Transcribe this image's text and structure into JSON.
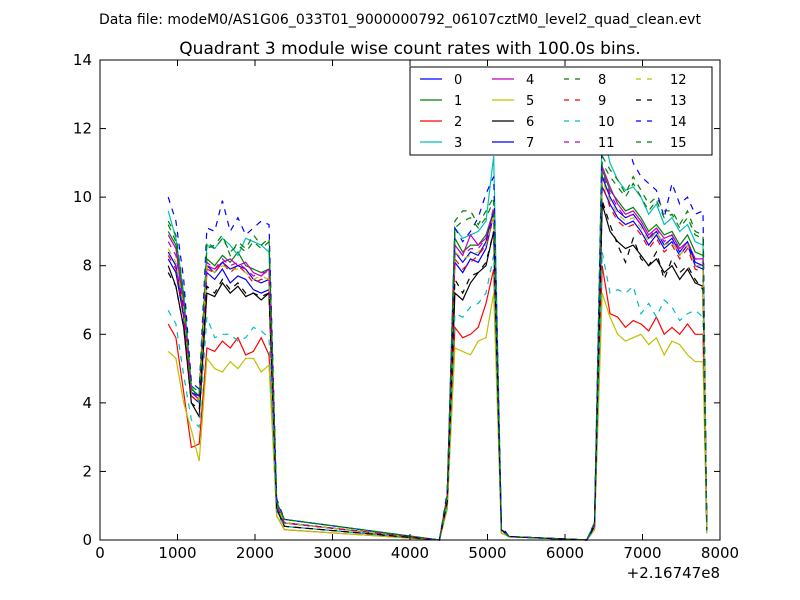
{
  "figure": {
    "suptitle": "Data file: modeM0/AS1G06_033T01_9000000792_06107cztM0_level2_quad_clean.evt"
  },
  "chart_data": {
    "type": "line",
    "title": "Quadrant 3 module wise count rates with 100.0s bins.",
    "xlabel": "",
    "ylabel": "",
    "x_offset_label": "+2.16747e8",
    "xlim": [
      0,
      8000
    ],
    "ylim": [
      0,
      14
    ],
    "xticks": [
      0,
      1000,
      2000,
      3000,
      4000,
      5000,
      6000,
      7000,
      8000
    ],
    "yticks": [
      0,
      2,
      4,
      6,
      8,
      10,
      12,
      14
    ],
    "grid": false,
    "legend": {
      "placement": "top-right",
      "columns": 4
    },
    "x": [
      880,
      980,
      1080,
      1180,
      1280,
      1380,
      1480,
      1580,
      1680,
      1780,
      1880,
      1980,
      2080,
      2180,
      2280,
      2380,
      4380,
      4480,
      4580,
      4680,
      4780,
      4880,
      4980,
      5080,
      5180,
      5280,
      6280,
      6380,
      6480,
      6580,
      6680,
      6780,
      6880,
      6980,
      7080,
      7180,
      7280,
      7380,
      7480,
      7580,
      7680,
      7780,
      7830
    ],
    "series": [
      {
        "name": "0",
        "color": "#0000ff",
        "dash": "solid",
        "values": [
          8.2,
          7.8,
          6.5,
          4.2,
          4.0,
          7.8,
          7.6,
          7.9,
          7.5,
          7.7,
          7.6,
          7.3,
          7.2,
          7.3,
          1.0,
          0.5,
          0,
          1.2,
          8.1,
          7.8,
          8.2,
          8.1,
          8.5,
          9.5,
          0.3,
          0.1,
          0,
          0.4,
          10.3,
          9.8,
          9.4,
          9.2,
          9.3,
          9.0,
          8.6,
          8.9,
          8.5,
          8.7,
          8.3,
          8.6,
          8.0,
          7.9,
          0.3
        ]
      },
      {
        "name": "1",
        "color": "#008000",
        "dash": "solid",
        "values": [
          9.0,
          8.6,
          7.0,
          4.4,
          4.2,
          8.2,
          8.0,
          8.3,
          8.1,
          8.4,
          8.0,
          7.9,
          7.8,
          7.9,
          1.0,
          0.5,
          0,
          1.2,
          8.8,
          8.4,
          8.6,
          8.6,
          8.9,
          9.6,
          0.3,
          0.1,
          0,
          0.4,
          10.8,
          10.2,
          9.9,
          9.6,
          9.7,
          9.4,
          9.0,
          9.2,
          8.9,
          9.0,
          8.6,
          8.9,
          8.4,
          8.3,
          0.3
        ]
      },
      {
        "name": "2",
        "color": "#ff0000",
        "dash": "solid",
        "values": [
          6.3,
          5.9,
          4.3,
          2.7,
          2.8,
          5.6,
          5.5,
          5.8,
          5.6,
          5.9,
          5.4,
          5.5,
          5.9,
          5.4,
          0.7,
          0.3,
          0,
          0.9,
          6.2,
          5.9,
          6.0,
          6.2,
          6.9,
          7.9,
          0.2,
          0.1,
          0,
          0.3,
          8.0,
          6.6,
          6.5,
          6.2,
          6.4,
          6.3,
          6.1,
          6.5,
          6.0,
          6.2,
          6.0,
          6.3,
          6.0,
          6.0,
          0.2
        ]
      },
      {
        "name": "3",
        "color": "#00bfbf",
        "dash": "solid",
        "values": [
          9.6,
          8.8,
          7.2,
          4.5,
          4.0,
          8.6,
          8.5,
          8.8,
          8.6,
          8.3,
          8.8,
          8.7,
          8.6,
          8.4,
          1.1,
          0.6,
          0,
          1.3,
          9.1,
          8.8,
          8.9,
          9.0,
          9.3,
          11.2,
          0.3,
          0.1,
          0,
          0.5,
          12.0,
          11.0,
          10.5,
          10.2,
          10.3,
          10.0,
          9.5,
          9.8,
          9.2,
          9.4,
          9.0,
          9.2,
          8.7,
          8.6,
          0.3
        ]
      },
      {
        "name": "4",
        "color": "#bf00bf",
        "dash": "solid",
        "values": [
          8.9,
          8.5,
          6.8,
          4.3,
          4.1,
          8.0,
          7.9,
          8.1,
          8.2,
          8.0,
          8.1,
          7.8,
          7.7,
          7.9,
          1.0,
          0.5,
          0,
          1.2,
          8.6,
          8.3,
          8.9,
          8.6,
          8.8,
          9.6,
          0.3,
          0.1,
          0,
          0.4,
          10.9,
          10.3,
          9.8,
          9.5,
          9.6,
          9.3,
          8.9,
          9.1,
          8.8,
          8.9,
          8.5,
          8.7,
          8.2,
          8.2,
          0.3
        ]
      },
      {
        "name": "5",
        "color": "#bfbf00",
        "dash": "solid",
        "values": [
          5.5,
          5.3,
          4.0,
          3.2,
          2.3,
          5.3,
          5.0,
          4.9,
          5.2,
          5.0,
          5.3,
          5.3,
          4.9,
          5.1,
          0.7,
          0.3,
          0,
          0.9,
          5.6,
          5.5,
          5.4,
          5.8,
          5.9,
          7.2,
          0.2,
          0.1,
          0,
          0.3,
          7.2,
          6.5,
          6.0,
          5.8,
          5.9,
          6.0,
          5.7,
          5.9,
          5.4,
          5.8,
          5.7,
          5.4,
          5.2,
          5.2,
          0.2
        ]
      },
      {
        "name": "6",
        "color": "#000000",
        "dash": "solid",
        "values": [
          8.0,
          7.4,
          6.2,
          4.0,
          3.6,
          7.2,
          7.1,
          7.5,
          7.2,
          7.4,
          7.1,
          7.2,
          7.0,
          7.2,
          0.9,
          0.4,
          0,
          1.1,
          7.2,
          7.0,
          7.5,
          7.8,
          8.0,
          9.0,
          0.3,
          0.1,
          0,
          0.4,
          9.8,
          9.0,
          8.7,
          8.5,
          8.6,
          8.3,
          8.0,
          8.2,
          7.8,
          8.0,
          7.6,
          7.9,
          7.5,
          7.4,
          0.3
        ]
      },
      {
        "name": "7",
        "color": "#0000ff",
        "dash": "solid",
        "values": [
          8.4,
          8.0,
          6.7,
          4.3,
          4.2,
          8.0,
          7.8,
          8.1,
          7.9,
          8.0,
          7.9,
          7.6,
          7.5,
          7.6,
          1.0,
          0.5,
          0,
          1.2,
          8.4,
          8.1,
          8.4,
          8.3,
          8.7,
          9.6,
          0.3,
          0.1,
          0,
          0.4,
          10.6,
          10.0,
          9.6,
          9.4,
          9.5,
          9.2,
          8.8,
          9.0,
          8.6,
          8.8,
          8.4,
          8.7,
          8.1,
          8.0,
          0.3
        ]
      },
      {
        "name": "8",
        "color": "#008000",
        "dash": "dashed",
        "values": [
          9.3,
          8.9,
          7.2,
          4.5,
          4.3,
          8.5,
          8.6,
          8.9,
          8.3,
          8.7,
          8.5,
          8.9,
          8.6,
          8.8,
          1.1,
          0.6,
          0,
          1.3,
          9.3,
          9.6,
          9.6,
          9.2,
          9.6,
          10.0,
          0.3,
          0.1,
          0,
          0.5,
          11.2,
          10.8,
          10.5,
          10.1,
          10.6,
          10.2,
          9.8,
          10.0,
          9.6,
          9.6,
          9.2,
          9.6,
          9.0,
          8.9,
          0.3
        ]
      },
      {
        "name": "9",
        "color": "#ff0000",
        "dash": "dashed",
        "values": [
          8.3,
          7.9,
          6.6,
          4.2,
          4.0,
          7.9,
          7.8,
          8.1,
          7.8,
          8.0,
          7.8,
          7.5,
          7.6,
          7.6,
          1.0,
          0.5,
          0,
          1.2,
          8.2,
          7.9,
          8.1,
          8.3,
          8.6,
          9.4,
          0.3,
          0.1,
          0,
          0.4,
          10.4,
          9.7,
          9.3,
          9.1,
          9.2,
          8.9,
          8.5,
          8.8,
          8.4,
          8.6,
          8.2,
          8.5,
          7.9,
          7.8,
          0.3
        ]
      },
      {
        "name": "10",
        "color": "#00bfbf",
        "dash": "dashed",
        "values": [
          6.7,
          6.3,
          4.8,
          3.5,
          3.3,
          6.5,
          5.9,
          6.0,
          6.0,
          5.8,
          5.9,
          6.2,
          6.1,
          5.9,
          0.8,
          0.4,
          0,
          1.0,
          6.6,
          6.5,
          6.8,
          6.9,
          7.2,
          8.3,
          0.2,
          0.1,
          0,
          0.3,
          8.4,
          7.2,
          7.3,
          7.2,
          7.4,
          6.6,
          6.9,
          6.5,
          7.0,
          6.8,
          6.4,
          6.6,
          6.7,
          6.5,
          0.2
        ]
      },
      {
        "name": "11",
        "color": "#bf00bf",
        "dash": "dashed",
        "values": [
          8.7,
          8.3,
          6.9,
          4.3,
          4.1,
          8.1,
          7.9,
          8.2,
          8.0,
          8.1,
          7.9,
          7.7,
          7.8,
          7.8,
          1.0,
          0.5,
          0,
          1.2,
          8.6,
          8.3,
          8.5,
          8.5,
          8.8,
          9.7,
          0.3,
          0.1,
          0,
          0.4,
          10.7,
          10.1,
          9.7,
          9.4,
          9.5,
          9.2,
          8.8,
          9.1,
          8.7,
          8.9,
          8.4,
          8.7,
          8.2,
          8.1,
          0.3
        ]
      },
      {
        "name": "12",
        "color": "#bfbf00",
        "dash": "dashed",
        "values": [
          8.5,
          8.1,
          6.8,
          4.2,
          4.1,
          8.0,
          7.8,
          8.0,
          7.9,
          7.9,
          7.8,
          7.6,
          7.7,
          7.6,
          1.0,
          0.5,
          0,
          1.2,
          8.4,
          8.2,
          8.3,
          8.4,
          8.6,
          9.5,
          0.3,
          0.1,
          0,
          0.4,
          10.5,
          9.9,
          9.5,
          9.3,
          9.4,
          9.1,
          8.7,
          9.0,
          8.6,
          8.7,
          8.3,
          8.6,
          8.0,
          8.0,
          0.3
        ]
      },
      {
        "name": "13",
        "color": "#000000",
        "dash": "dashed",
        "values": [
          7.8,
          7.4,
          6.2,
          4.0,
          3.8,
          7.4,
          7.2,
          7.6,
          7.3,
          7.5,
          7.2,
          7.2,
          7.1,
          7.2,
          0.9,
          0.4,
          0,
          1.1,
          7.6,
          7.2,
          7.7,
          7.8,
          8.1,
          9.0,
          0.3,
          0.1,
          0,
          0.4,
          9.9,
          9.2,
          8.6,
          8.1,
          8.8,
          8.2,
          8.0,
          8.4,
          7.6,
          8.2,
          7.8,
          8.0,
          7.6,
          7.3,
          0.3
        ]
      },
      {
        "name": "14",
        "color": "#0000ff",
        "dash": "dashed",
        "values": [
          10.0,
          9.3,
          7.6,
          4.6,
          4.4,
          9.1,
          9.0,
          9.9,
          9.0,
          9.4,
          8.9,
          9.1,
          9.3,
          9.2,
          1.2,
          0.6,
          0,
          1.4,
          9.1,
          8.7,
          9.0,
          9.4,
          10.1,
          10.6,
          0.4,
          0.1,
          0,
          0.5,
          11.8,
          11.2,
          11.4,
          11.8,
          11.0,
          10.6,
          10.4,
          10.2,
          9.4,
          10.4,
          9.8,
          10.0,
          9.5,
          9.6,
          0.4
        ]
      },
      {
        "name": "15",
        "color": "#008000",
        "dash": "dashed",
        "values": [
          9.2,
          8.7,
          7.1,
          4.4,
          4.2,
          8.7,
          8.5,
          8.8,
          8.4,
          8.6,
          8.4,
          8.7,
          8.5,
          8.7,
          1.1,
          0.6,
          0,
          1.3,
          9.1,
          9.3,
          9.4,
          9.1,
          9.4,
          9.9,
          0.3,
          0.1,
          0,
          0.5,
          11.0,
          10.6,
          10.3,
          10.0,
          10.4,
          10.0,
          9.6,
          9.9,
          9.4,
          9.5,
          9.1,
          9.4,
          8.9,
          8.8,
          0.3
        ]
      }
    ]
  }
}
